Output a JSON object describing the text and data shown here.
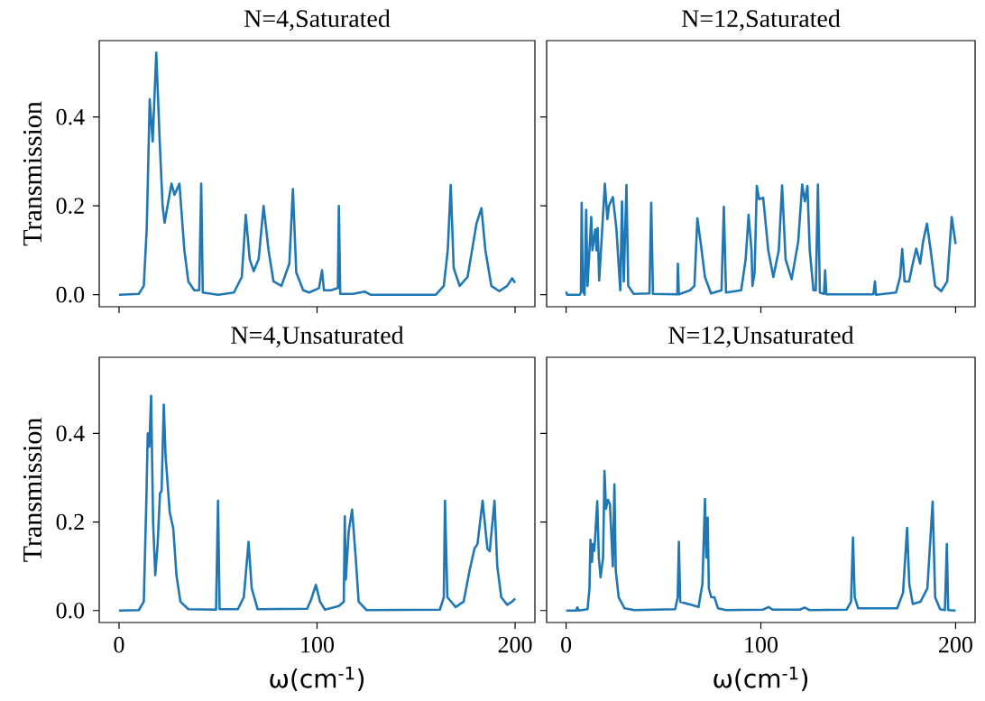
{
  "chart_data": [
    {
      "type": "line",
      "title": "N=4,Saturated",
      "ylabel": "Transmission",
      "color": "#1f77b4",
      "xlim": [
        -10,
        210
      ],
      "ylim": [
        -0.027,
        0.572
      ],
      "xticks": [
        {
          "value": 0,
          "label": null
        },
        {
          "value": 100,
          "label": null
        },
        {
          "value": 200,
          "label": null
        }
      ],
      "yticks": [
        {
          "value": 0,
          "label": "0.0"
        },
        {
          "value": 0.2,
          "label": "0.2"
        },
        {
          "value": 0.4,
          "label": "0.4"
        }
      ],
      "tick_labels": "y",
      "x": [
        0,
        10,
        12.5,
        14,
        15.5,
        17,
        18.8,
        20.5,
        22,
        23,
        26.5,
        28,
        30.5,
        33,
        35,
        38,
        40.5,
        41.5,
        42.3,
        50,
        58,
        62,
        64,
        66,
        68,
        70.5,
        73,
        75.5,
        78,
        82,
        86,
        87.8,
        89.5,
        93,
        96,
        101,
        102.5,
        103.5,
        107,
        110.5,
        111,
        111.7,
        118,
        124,
        127,
        160,
        164,
        166,
        167.5,
        169,
        172,
        176,
        179,
        180.5,
        183,
        185,
        188,
        192,
        196,
        198.5,
        200
      ],
      "values": [
        0,
        0.002,
        0.02,
        0.15,
        0.44,
        0.345,
        0.545,
        0.35,
        0.2,
        0.162,
        0.25,
        0.225,
        0.25,
        0.1,
        0.03,
        0.01,
        0.01,
        0.25,
        0.005,
        0,
        0.005,
        0.04,
        0.18,
        0.08,
        0.053,
        0.08,
        0.2,
        0.1,
        0.03,
        0.02,
        0.07,
        0.238,
        0.05,
        0.01,
        0.005,
        0.015,
        0.055,
        0.01,
        0.01,
        0.015,
        0.2,
        0.002,
        0.002,
        0.007,
        0,
        0,
        0.02,
        0.1,
        0.247,
        0.06,
        0.02,
        0.04,
        0.12,
        0.16,
        0.195,
        0.1,
        0.02,
        0.008,
        0.02,
        0.037,
        0.027
      ]
    },
    {
      "type": "line",
      "title": "N=12,Saturated",
      "color": "#1f77b4",
      "xlim": [
        -10,
        210
      ],
      "ylim": [
        -0.027,
        0.572
      ],
      "xticks": [
        {
          "value": 0,
          "label": null
        },
        {
          "value": 100,
          "label": null
        },
        {
          "value": 200,
          "label": null
        }
      ],
      "yticks": [
        {
          "value": 0,
          "label": null
        },
        {
          "value": 0.2,
          "label": null
        },
        {
          "value": 0.4,
          "label": null
        }
      ],
      "tick_labels": false,
      "x": [
        0,
        0.5,
        7,
        7.6,
        8,
        8.6,
        9.5,
        10.3,
        11,
        12.9,
        13.5,
        15,
        15.6,
        16.2,
        17,
        19.9,
        21.2,
        22,
        24,
        25.8,
        27.8,
        28.7,
        29.6,
        31,
        31.9,
        34.7,
        42.8,
        43.7,
        44.6,
        57.1,
        57.4,
        57.9,
        63.6,
        65.9,
        67.4,
        69.3,
        71.3,
        74.4,
        79.8,
        81,
        82.1,
        89.9,
        92.2,
        93.7,
        95.2,
        95.7,
        96.8,
        97.9,
        99.1,
        101.2,
        103.8,
        106.4,
        109.2,
        110.9,
        112.7,
        115.8,
        119.2,
        121.2,
        122.6,
        123.9,
        125.1,
        127,
        128.2,
        129.3,
        130.3,
        132.4,
        133,
        133.6,
        157.8,
        158.6,
        159.1,
        169.4,
        171.5,
        172.6,
        173.8,
        176.1,
        178,
        179.8,
        181.8,
        183.3,
        185.3,
        187.2,
        189.5,
        192.6,
        195.7,
        198,
        200
      ],
      "values": [
        0.007,
        0,
        0,
        0.005,
        0.207,
        0.01,
        0,
        0.191,
        0.02,
        0.175,
        0.1,
        0.147,
        0.1,
        0.15,
        0.032,
        0.25,
        0.17,
        0.2,
        0.22,
        0.15,
        0.01,
        0.21,
        0.03,
        0.247,
        0.02,
        0.002,
        0.003,
        0.207,
        0.002,
        0.001,
        0.07,
        0.001,
        0.01,
        0.02,
        0.172,
        0.11,
        0.04,
        0.003,
        0.01,
        0.198,
        0.005,
        0.01,
        0.08,
        0.18,
        0.1,
        0.02,
        0.05,
        0.245,
        0.215,
        0.218,
        0.1,
        0.04,
        0.1,
        0.246,
        0.08,
        0.035,
        0.12,
        0.248,
        0.21,
        0.245,
        0.1,
        0.01,
        0.01,
        0.248,
        0.005,
        0.002,
        0.055,
        0.001,
        0.001,
        0.03,
        0,
        0.005,
        0.04,
        0.103,
        0.03,
        0.03,
        0.07,
        0.104,
        0.07,
        0.12,
        0.16,
        0.1,
        0.02,
        0.008,
        0.03,
        0.175,
        0.114
      ]
    },
    {
      "type": "line",
      "title": "N=4,Unsaturated",
      "xlabel": "ω(cm$^{-1}$)",
      "ylabel": "Transmission",
      "color": "#1f77b4",
      "xlim": [
        -10,
        210
      ],
      "ylim": [
        -0.027,
        0.572
      ],
      "xticks": [
        0,
        100,
        200
      ],
      "yticks": [
        {
          "value": 0,
          "label": "0.0"
        },
        {
          "value": 0.2,
          "label": "0.2"
        },
        {
          "value": 0.4,
          "label": "0.4"
        }
      ],
      "x": [
        0,
        10,
        12.5,
        13.8,
        14.5,
        15.3,
        16.2,
        17.2,
        18.3,
        19.5,
        20.7,
        21.5,
        22.6,
        23.5,
        25.6,
        27.4,
        29,
        31,
        35,
        49,
        50,
        50.8,
        60,
        63,
        65.4,
        67,
        70,
        95,
        97,
        99.4,
        101.5,
        104,
        111,
        113.5,
        114,
        114.5,
        116,
        117.7,
        119.5,
        121,
        125,
        162,
        164,
        164.6,
        165.8,
        170,
        174,
        177,
        179.5,
        181,
        183.6,
        186,
        187.2,
        189.6,
        191,
        193,
        196,
        198.5,
        200
      ],
      "values": [
        0,
        0.001,
        0.02,
        0.25,
        0.4,
        0.37,
        0.485,
        0.2,
        0.08,
        0.15,
        0.265,
        0.27,
        0.465,
        0.35,
        0.222,
        0.185,
        0.08,
        0.02,
        0.003,
        0.002,
        0.248,
        0.003,
        0.003,
        0.03,
        0.155,
        0.05,
        0.003,
        0.004,
        0.025,
        0.058,
        0.02,
        0.002,
        0.01,
        0.02,
        0.213,
        0.07,
        0.18,
        0.228,
        0.12,
        0.02,
        0.001,
        0.002,
        0.03,
        0.248,
        0.03,
        0.008,
        0.02,
        0.09,
        0.14,
        0.15,
        0.248,
        0.14,
        0.134,
        0.248,
        0.1,
        0.03,
        0.013,
        0.02,
        0.027
      ]
    },
    {
      "type": "line",
      "title": "N=12,Unsaturated",
      "xlabel": "ω(cm$^{-1}$)",
      "color": "#1f77b4",
      "xlim": [
        -10,
        210
      ],
      "ylim": [
        -0.027,
        0.572
      ],
      "xticks": [
        0,
        100,
        200
      ],
      "yticks": [
        {
          "value": 0,
          "label": null
        },
        {
          "value": 0.2,
          "label": null
        },
        {
          "value": 0.4,
          "label": null
        }
      ],
      "tick_labels": "x",
      "x": [
        0,
        5.2,
        5.8,
        6.4,
        11,
        12,
        12.5,
        13.3,
        13.8,
        14.5,
        16,
        16.8,
        17.7,
        19,
        19.7,
        20.5,
        21.5,
        22.5,
        24,
        24.8,
        25.5,
        27,
        30,
        35,
        56,
        57.3,
        57.9,
        58.6,
        68,
        70,
        71.3,
        72,
        72.7,
        73.3,
        74.5,
        76.2,
        78,
        82,
        101,
        104,
        106,
        120,
        122.5,
        125,
        144,
        146.3,
        147.3,
        148.2,
        150,
        170,
        173,
        175.1,
        176.2,
        178,
        182,
        185.5,
        188.2,
        189.5,
        192,
        194.5,
        195.5,
        196.2,
        200
      ],
      "values": [
        0,
        0,
        0.007,
        0,
        0.003,
        0.05,
        0.16,
        0.11,
        0.15,
        0.135,
        0.247,
        0.12,
        0.075,
        0.12,
        0.315,
        0.23,
        0.25,
        0.24,
        0.1,
        0.285,
        0.09,
        0.03,
        0.005,
        0.001,
        0.003,
        0.03,
        0.155,
        0.02,
        0.008,
        0.06,
        0.252,
        0.12,
        0.21,
        0.05,
        0.03,
        0.03,
        0.005,
        0.001,
        0.002,
        0.008,
        0.002,
        0.002,
        0.007,
        0.001,
        0.002,
        0.02,
        0.165,
        0.03,
        0.005,
        0.005,
        0.04,
        0.187,
        0.06,
        0.015,
        0.02,
        0.05,
        0.246,
        0.03,
        0.003,
        0.001,
        0.15,
        0.001,
        0
      ]
    }
  ]
}
